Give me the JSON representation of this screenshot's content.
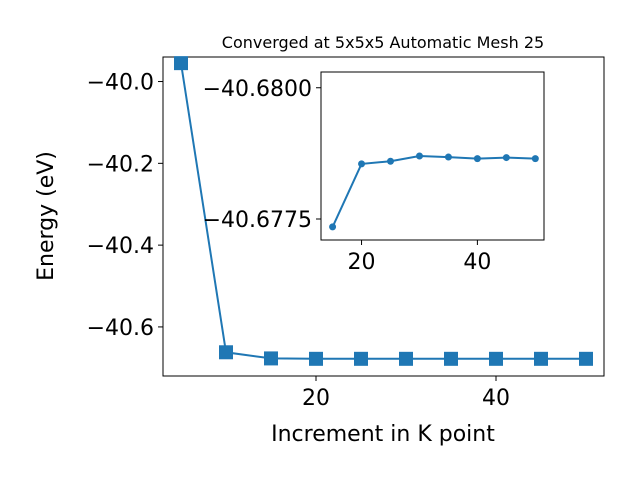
{
  "chart_data": [
    {
      "type": "line",
      "title": "Converged at 5x5x5 Automatic Mesh 25",
      "xlabel": "Increment in K point",
      "ylabel": "Energy (eV)",
      "xlim": [
        3,
        52
      ],
      "ylim": [
        -40.72,
        -39.94
      ],
      "x_ticks": [
        20,
        40
      ],
      "y_ticks": [
        -40.0,
        -40.2,
        -40.4,
        -40.6
      ],
      "x_tick_labels": [
        "20",
        "40"
      ],
      "y_tick_labels": [
        "−40.0",
        "−40.2",
        "−40.4",
        "−40.6"
      ],
      "grid": false,
      "legend": "none",
      "marker": "square",
      "color": "#1f77b4",
      "series": [
        {
          "x": [
            5,
            10,
            15,
            20,
            25,
            30,
            35,
            40,
            45,
            50
          ],
          "values": [
            -39.955,
            -40.662,
            -40.677,
            -40.678,
            -40.678,
            -40.678,
            -40.678,
            -40.678,
            -40.678,
            -40.678
          ]
        }
      ]
    },
    {
      "type": "line",
      "title": "",
      "xlabel": "",
      "ylabel": "",
      "xlim": [
        13,
        51.5
      ],
      "ylim": [
        -40.6771,
        -40.6803
      ],
      "x_ticks": [
        20,
        40
      ],
      "y_ticks": [
        -40.68,
        -40.6775
      ],
      "x_tick_labels": [
        "20",
        "40"
      ],
      "y_tick_labels": [
        "−40.6800",
        "−40.6775"
      ],
      "grid": false,
      "legend": "none",
      "marker": "circle",
      "color": "#1f77b4",
      "series": [
        {
          "x": [
            15,
            20,
            25,
            30,
            35,
            40,
            45,
            50
          ],
          "values": [
            -40.67735,
            -40.67855,
            -40.6786,
            -40.6787,
            -40.67868,
            -40.67865,
            -40.67867,
            -40.67865
          ]
        }
      ]
    }
  ]
}
